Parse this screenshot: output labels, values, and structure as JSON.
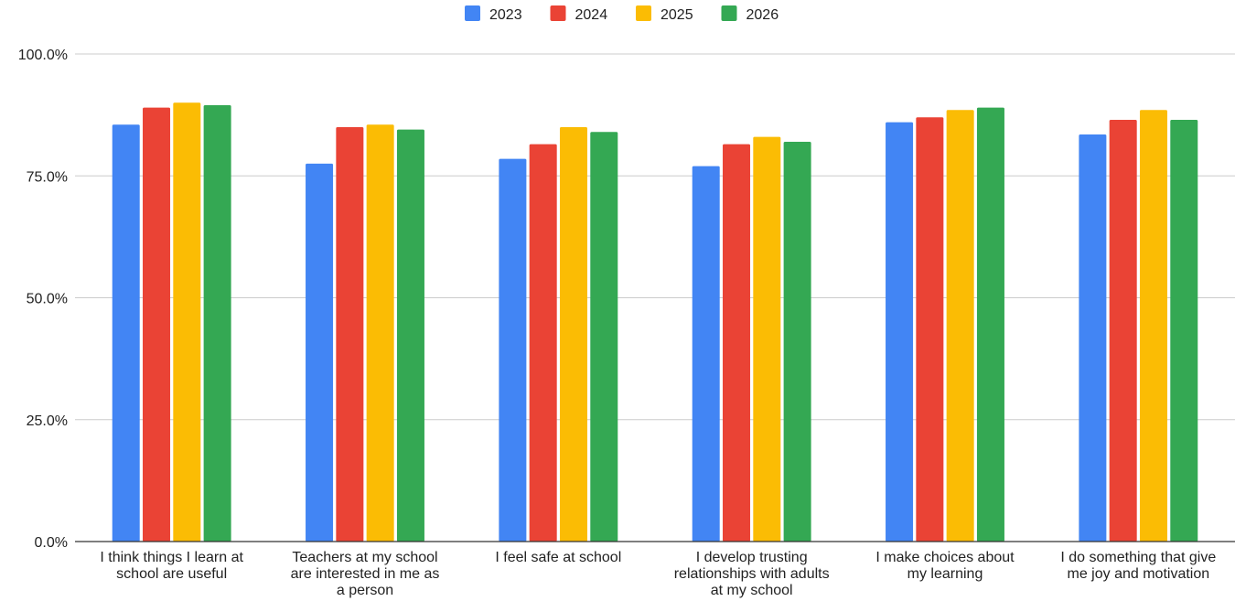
{
  "chart_data": {
    "type": "bar",
    "title": "",
    "xlabel": "",
    "ylabel": "",
    "ylim": [
      0,
      100
    ],
    "y_ticks": [
      "0.0%",
      "25.0%",
      "50.0%",
      "75.0%",
      "100.0%"
    ],
    "y_tick_values": [
      0,
      25,
      50,
      75,
      100
    ],
    "grid": true,
    "legend_position": "top-center",
    "categories": [
      [
        "I think things I learn at",
        "school are useful"
      ],
      [
        "Teachers at my school",
        "are interested in me as",
        "a person"
      ],
      [
        "I feel safe at school"
      ],
      [
        "I develop trusting",
        "relationships with adults",
        "at my school"
      ],
      [
        "I make choices about",
        "my learning"
      ],
      [
        "I do something that give",
        "me joy and motivation"
      ]
    ],
    "series": [
      {
        "name": "2023",
        "color": "#4285F4",
        "values": [
          85.5,
          77.5,
          78.5,
          77.0,
          86.0,
          83.5
        ]
      },
      {
        "name": "2024",
        "color": "#EA4335",
        "values": [
          89.0,
          85.0,
          81.5,
          81.5,
          87.0,
          86.5
        ]
      },
      {
        "name": "2025",
        "color": "#FBBC04",
        "values": [
          90.0,
          85.5,
          85.0,
          83.0,
          88.5,
          88.5
        ]
      },
      {
        "name": "2026",
        "color": "#34A853",
        "values": [
          89.5,
          84.5,
          84.0,
          82.0,
          89.0,
          86.5
        ]
      }
    ]
  }
}
